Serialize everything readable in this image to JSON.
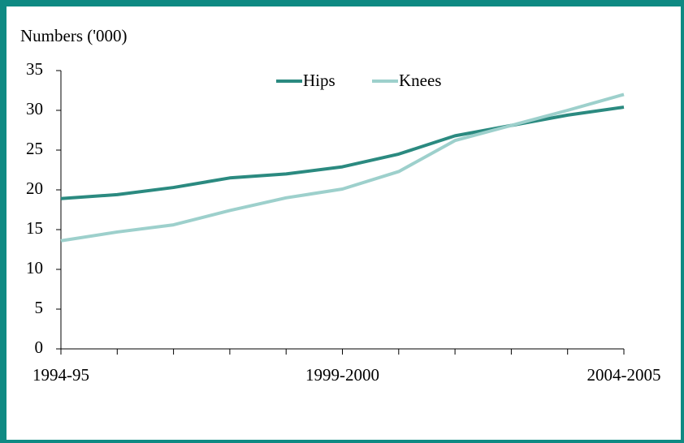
{
  "chart_data": {
    "type": "line",
    "y_label": "Numbers ('000)",
    "categories": [
      "1994-95",
      null,
      null,
      null,
      null,
      "1999-2000",
      null,
      null,
      null,
      null,
      "2004-2005"
    ],
    "series": [
      {
        "name": "Hips",
        "color": "#2b8a80",
        "values": [
          18.9,
          19.4,
          20.3,
          21.5,
          22.0,
          22.9,
          24.5,
          26.8,
          28.1,
          29.4,
          30.4
        ]
      },
      {
        "name": "Knees",
        "color": "#9dd0cc",
        "values": [
          13.6,
          14.7,
          15.6,
          17.4,
          19.0,
          20.1,
          22.3,
          26.2,
          28.1,
          30.0,
          32.0
        ]
      }
    ],
    "ylim": [
      0,
      35
    ],
    "yticks": [
      0,
      5,
      10,
      15,
      20,
      25,
      30,
      35
    ],
    "legend": "top"
  }
}
